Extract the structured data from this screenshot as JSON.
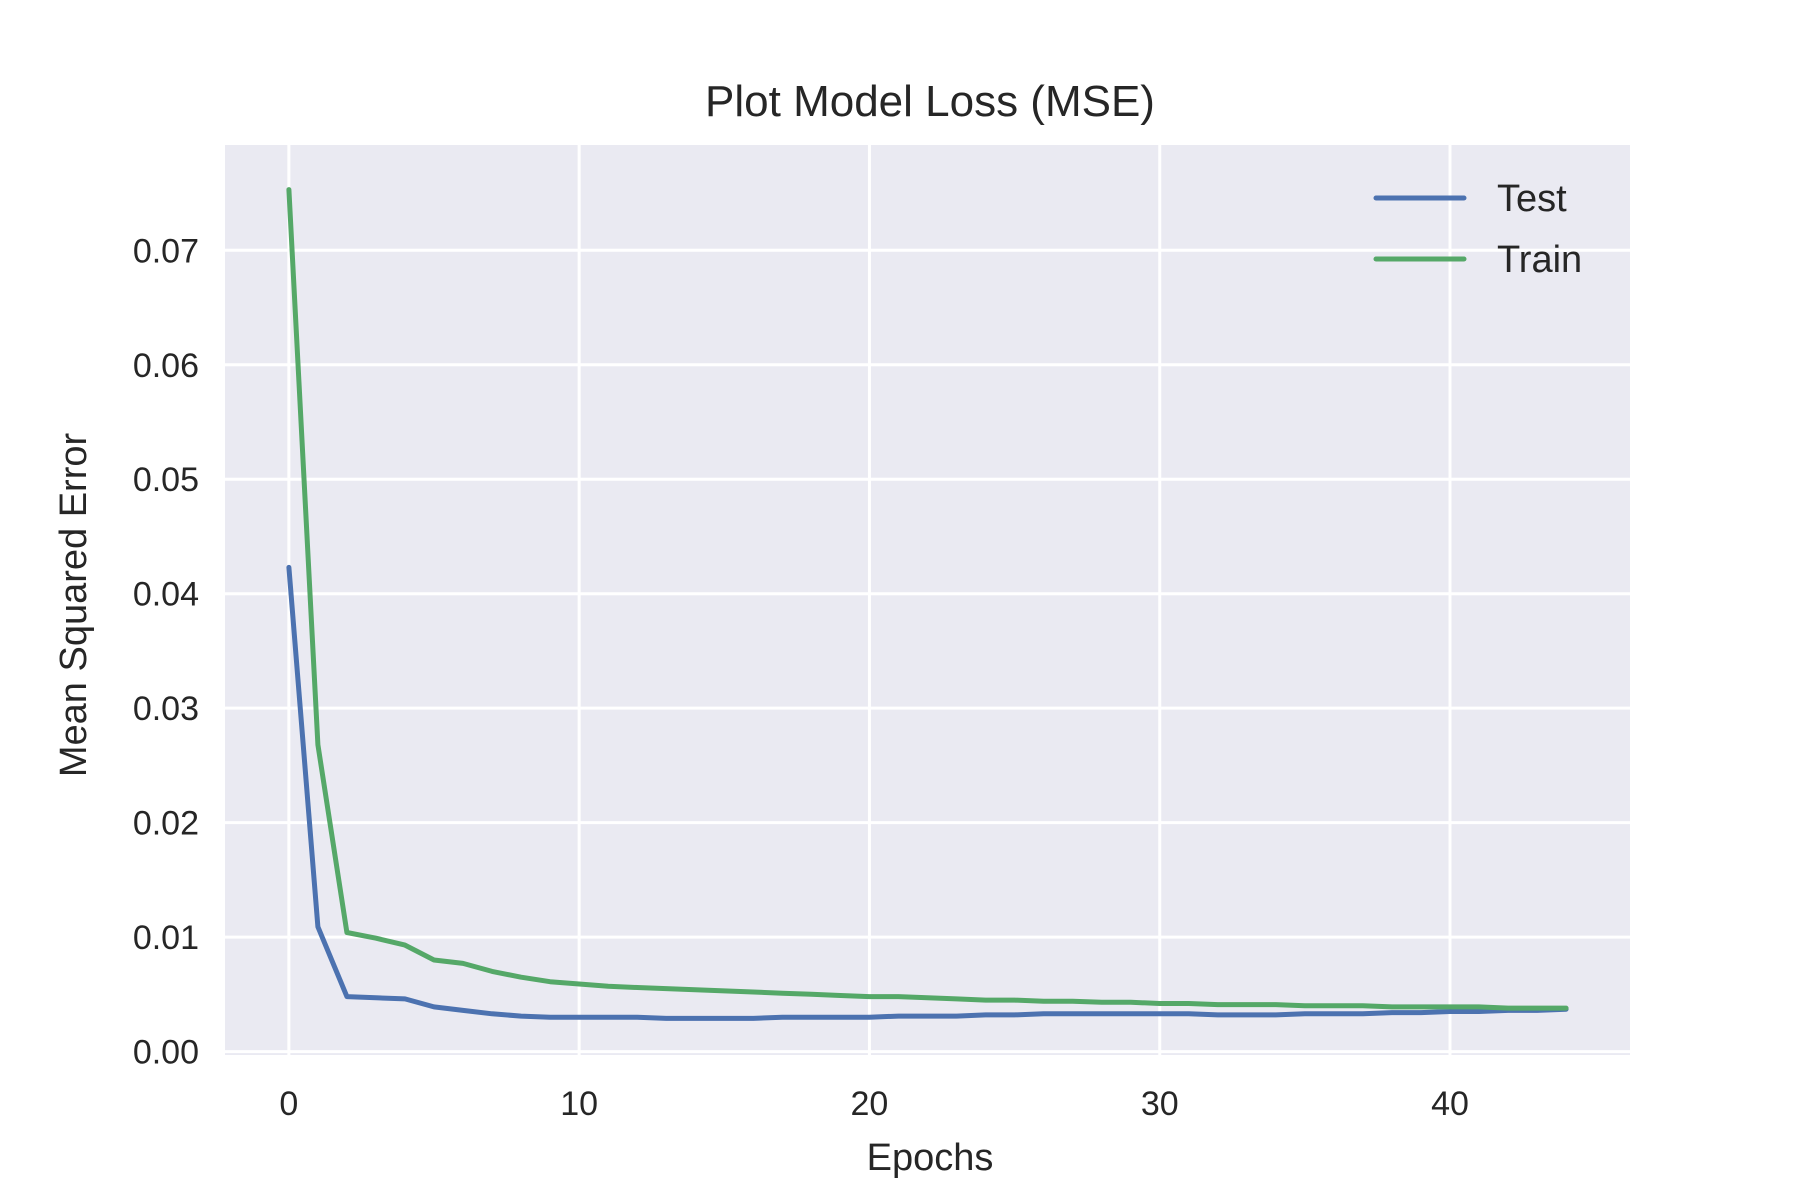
{
  "chart_data": {
    "type": "line",
    "title": "Plot Model Loss (MSE)",
    "xlabel": "Epochs",
    "ylabel": "Mean Squared Error",
    "xlim": [
      -2.2,
      46.2
    ],
    "ylim": [
      -0.0003,
      0.0792
    ],
    "xticks": [
      0,
      10,
      20,
      30,
      40
    ],
    "yticks": [
      0.0,
      0.01,
      0.02,
      0.03,
      0.04,
      0.05,
      0.06,
      0.07
    ],
    "ytick_labels": [
      "0.00",
      "0.01",
      "0.02",
      "0.03",
      "0.04",
      "0.05",
      "0.06",
      "0.07"
    ],
    "grid": true,
    "legend_position": "top-right",
    "x": [
      0,
      1,
      2,
      3,
      4,
      5,
      6,
      7,
      8,
      9,
      10,
      11,
      12,
      13,
      14,
      15,
      16,
      17,
      18,
      19,
      20,
      21,
      22,
      23,
      24,
      25,
      26,
      27,
      28,
      29,
      30,
      31,
      32,
      33,
      34,
      35,
      36,
      37,
      38,
      39,
      40,
      41,
      42,
      43,
      44
    ],
    "series": [
      {
        "name": "Test",
        "color": "#4c72b0",
        "values": [
          0.0423,
          0.0109,
          0.0048,
          0.0047,
          0.0046,
          0.0039,
          0.0036,
          0.0033,
          0.0031,
          0.003,
          0.003,
          0.003,
          0.003,
          0.0029,
          0.0029,
          0.0029,
          0.0029,
          0.003,
          0.003,
          0.003,
          0.003,
          0.0031,
          0.0031,
          0.0031,
          0.0032,
          0.0032,
          0.0033,
          0.0033,
          0.0033,
          0.0033,
          0.0033,
          0.0033,
          0.0032,
          0.0032,
          0.0032,
          0.0033,
          0.0033,
          0.0033,
          0.0034,
          0.0034,
          0.0035,
          0.0035,
          0.0036,
          0.0036,
          0.0037
        ]
      },
      {
        "name": "Train",
        "color": "#55a868",
        "values": [
          0.0753,
          0.0268,
          0.0104,
          0.0099,
          0.0093,
          0.008,
          0.0077,
          0.007,
          0.0065,
          0.0061,
          0.0059,
          0.0057,
          0.0056,
          0.0055,
          0.0054,
          0.0053,
          0.0052,
          0.0051,
          0.005,
          0.0049,
          0.0048,
          0.0048,
          0.0047,
          0.0046,
          0.0045,
          0.0045,
          0.0044,
          0.0044,
          0.0043,
          0.0043,
          0.0042,
          0.0042,
          0.0041,
          0.0041,
          0.0041,
          0.004,
          0.004,
          0.004,
          0.0039,
          0.0039,
          0.0039,
          0.0039,
          0.0038,
          0.0038,
          0.0038
        ]
      }
    ]
  },
  "colors": {
    "plot_background": "#eaeaf2",
    "grid": "#ffffff",
    "text": "#262626"
  }
}
